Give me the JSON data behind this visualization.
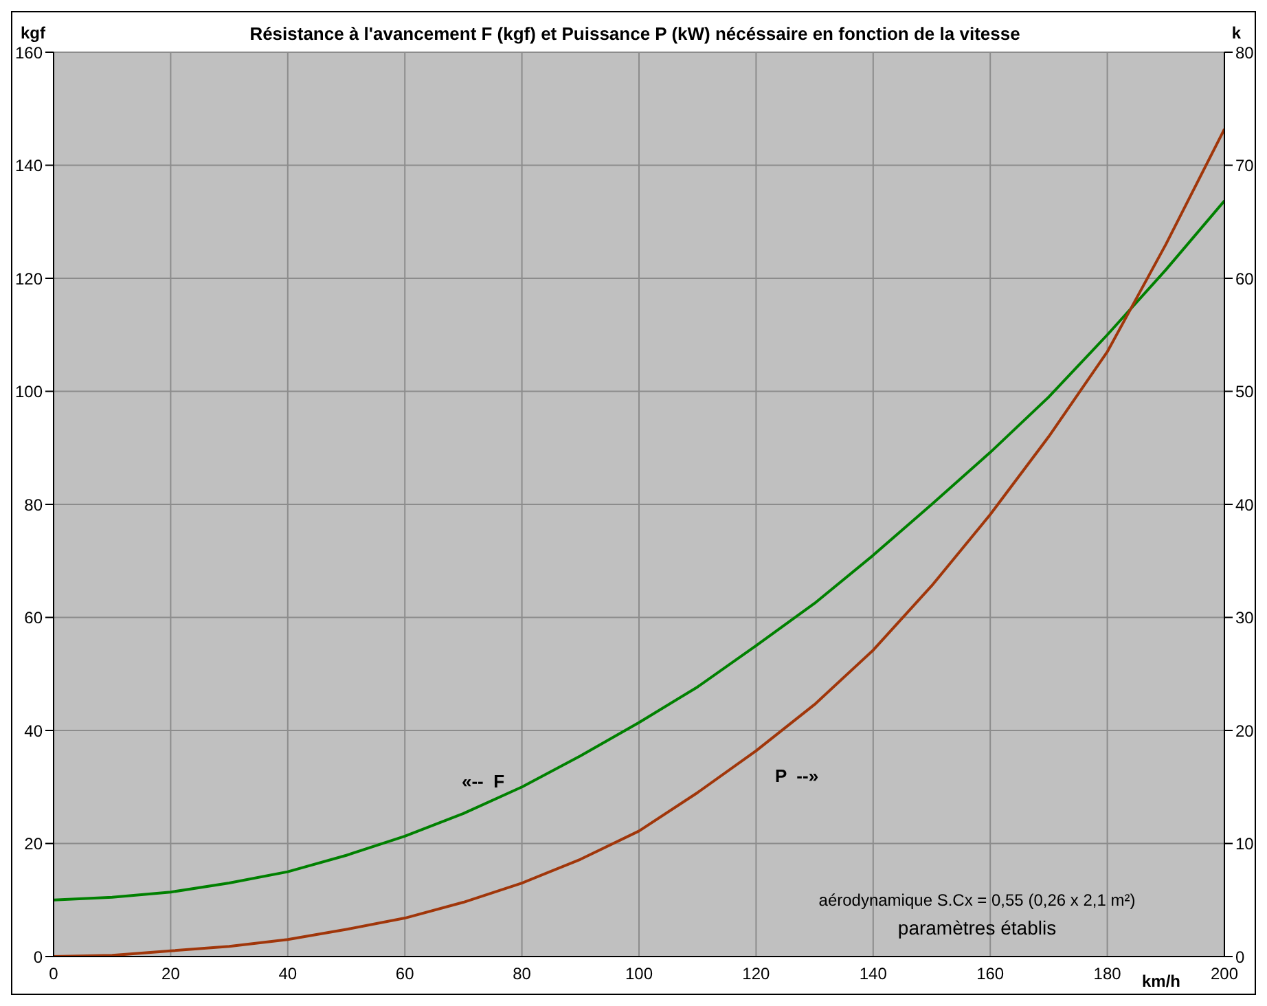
{
  "chart_data": {
    "type": "line",
    "title": "Résistance à l'avancement F (kgf) et Puissance P (kW) nécéssaire en fonction de la vitesse",
    "ylabel": "kgf",
    "y2label": "k",
    "xlabel": "km/h",
    "x": [
      0,
      10,
      20,
      30,
      40,
      50,
      60,
      70,
      80,
      90,
      100,
      110,
      120,
      130,
      140,
      150,
      160,
      170,
      180,
      190,
      200
    ],
    "series": [
      {
        "color": "#008000",
        "values": [
          10.0,
          10.5,
          11.4,
          13.0,
          15.0,
          17.9,
          21.3,
          25.3,
          30.0,
          35.5,
          41.4,
          47.7,
          55.0,
          62.5,
          71.0,
          80.0,
          89.2,
          99.0,
          110.0,
          121.5,
          133.7
        ]
      },
      {
        "color": "#a0360a",
        "axis": "y2",
        "values": [
          0,
          0.1,
          0.5,
          0.9,
          1.5,
          2.4,
          3.4,
          4.8,
          6.5,
          8.6,
          11.1,
          14.5,
          18.2,
          22.3,
          27.1,
          32.8,
          39.1,
          46.0,
          53.5,
          63.0,
          73.2
        ]
      }
    ],
    "xlim": [
      0,
      200
    ],
    "xticks": [
      0,
      20,
      40,
      60,
      80,
      100,
      120,
      140,
      160,
      180,
      200
    ],
    "ylim": [
      0,
      160
    ],
    "yticks": [
      0,
      20,
      40,
      60,
      80,
      100,
      120,
      140,
      160
    ],
    "y2lim": [
      0,
      80
    ],
    "y2ticks": [
      0,
      10,
      20,
      30,
      40,
      50,
      60,
      70,
      80
    ],
    "grid": true,
    "legend": false,
    "marker": "none",
    "line_style": "solid",
    "annotations": [
      "«--  F",
      "P  --»",
      "aérodynamique S.Cx = 0,55 (0,26 x 2,1 m²)",
      "paramètres établis"
    ]
  }
}
